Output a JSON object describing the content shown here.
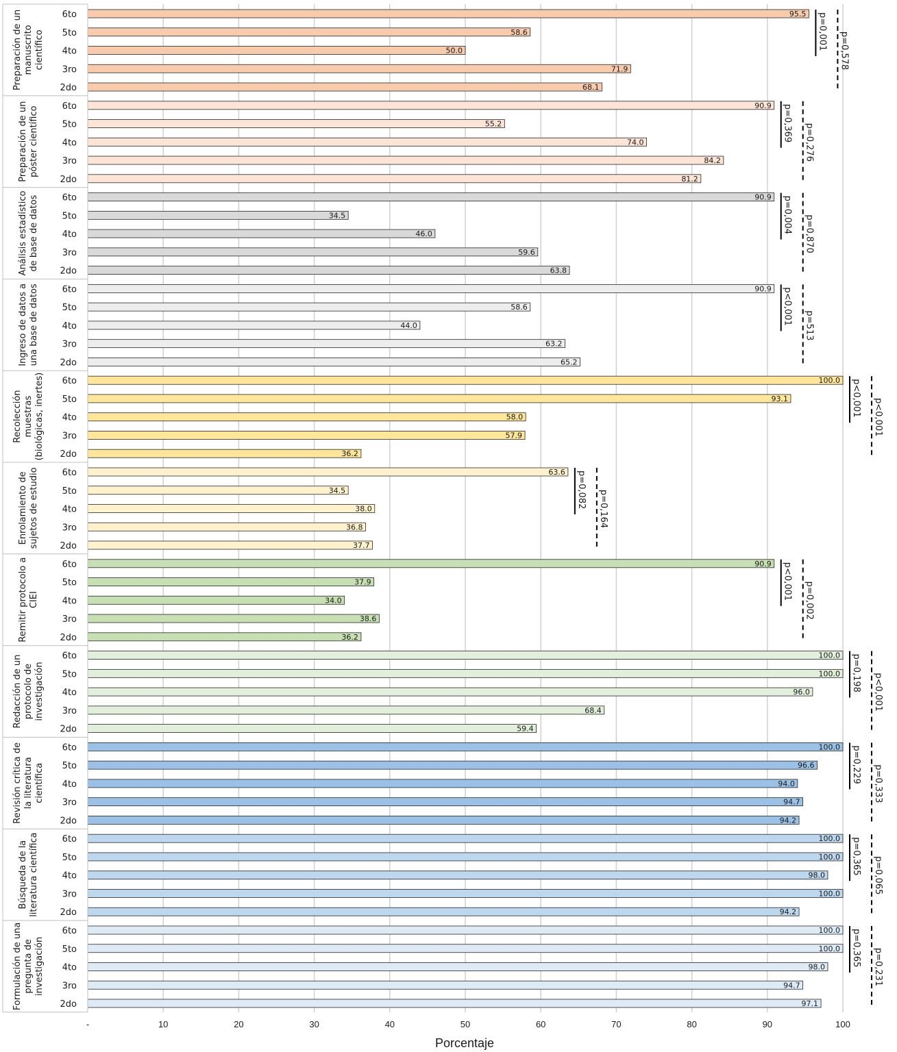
{
  "chart_data": {
    "type": "bar",
    "orientation": "horizontal",
    "xlabel": "Porcentaje",
    "xlim": [
      0,
      100
    ],
    "xticks": [
      "-",
      "10",
      "20",
      "30",
      "40",
      "50",
      "60",
      "70",
      "80",
      "90",
      "100"
    ],
    "grid": true,
    "categories": [
      "6to",
      "5to",
      "4to",
      "3ro",
      "2do"
    ],
    "groups": [
      {
        "name": "Preparación de un manuscrito científico",
        "label_lines": [
          "Preparación de un",
          "manuscrito",
          "científico"
        ],
        "color": "#f8cbad",
        "values": [
          95.5,
          58.6,
          50.0,
          71.9,
          68.1
        ],
        "values_text": [
          "95.5",
          "58.6",
          "50.0",
          "71.9",
          "68.1"
        ],
        "p_solid": "p=0,001",
        "p_dashed": "p=0,578"
      },
      {
        "name": "Preparación de un póster científico",
        "label_lines": [
          "Preparación de un",
          "póster científico"
        ],
        "color": "#fce4d6",
        "values": [
          90.9,
          55.2,
          74.0,
          84.2,
          81.2
        ],
        "values_text": [
          "90.9",
          "55.2",
          "74.0",
          "84.2",
          "81.2"
        ],
        "p_solid": "p=0,369",
        "p_dashed": "p=0,276"
      },
      {
        "name": "Análisis estadístico de base de datos",
        "label_lines": [
          "Análisis estadístico",
          "de base de datos"
        ],
        "color": "#d9d9d9",
        "values": [
          90.9,
          34.5,
          46.0,
          59.6,
          63.8
        ],
        "values_text": [
          "90.9",
          "34.5",
          "46.0",
          "59.6",
          "63.8"
        ],
        "p_solid": "p=0,004",
        "p_dashed": "p=0,870"
      },
      {
        "name": "Ingreso de datos a una base de datos",
        "label_lines": [
          "Ingreso de datos a",
          "una base de datos"
        ],
        "color": "#ededed",
        "values": [
          90.9,
          58.6,
          44.0,
          63.2,
          65.2
        ],
        "values_text": [
          "90.9",
          "58.6",
          "44.0",
          "63.2",
          "65.2"
        ],
        "p_solid": "p<0,001",
        "p_dashed": "p=513"
      },
      {
        "name": "Recolección muestras (biológicas, inertes)",
        "label_lines": [
          "Recolección",
          "muestras",
          "(biológicas, inertes)"
        ],
        "color": "#ffe699",
        "values": [
          100.0,
          93.1,
          58.0,
          57.9,
          36.2
        ],
        "values_text": [
          "100.0",
          "93.1",
          "58.0",
          "57.9",
          "36.2"
        ],
        "p_solid": "p<0,001",
        "p_dashed": "p<0,001"
      },
      {
        "name": "Enrolamiento de sujetos de estudio",
        "label_lines": [
          "Enrolamiento de",
          "sujetos de estudio"
        ],
        "color": "#fff2cc",
        "values": [
          63.6,
          34.5,
          38.0,
          36.8,
          37.7
        ],
        "values_text": [
          "63.6",
          "34.5",
          "38.0",
          "36.8",
          "37.7"
        ],
        "p_solid": "p=0,082",
        "p_dashed": "p=0,164"
      },
      {
        "name": "Remitir protocolo a CIEI",
        "label_lines": [
          "Remitir protocolo a",
          "CIEI"
        ],
        "color": "#c6e0b4",
        "values": [
          90.9,
          37.9,
          34.0,
          38.6,
          36.2
        ],
        "values_text": [
          "90.9",
          "37.9",
          "34.0",
          "38.6",
          "36.2"
        ],
        "p_solid": "p<0,001",
        "p_dashed": "p=0,002"
      },
      {
        "name": "Redacción de un protocolo de investigación",
        "label_lines": [
          "Redacción de un",
          "protocolo de",
          "investigación"
        ],
        "color": "#e2efda",
        "values": [
          100.0,
          100.0,
          96.0,
          68.4,
          59.4
        ],
        "values_text": [
          "100.0",
          "100.0",
          "96.0",
          "68.4",
          "59.4"
        ],
        "p_solid": "p=0,198",
        "p_dashed": "p<0,001"
      },
      {
        "name": "Revisión crítica de la literatura científica",
        "label_lines": [
          "Revisión crítica de",
          "la literatura",
          "científica"
        ],
        "color": "#9bc2e6",
        "values": [
          100.0,
          96.6,
          94.0,
          94.7,
          94.2
        ],
        "values_text": [
          "100.0",
          "96.6",
          "94.0",
          "94.7",
          "94.2"
        ],
        "p_solid": "p=0,229",
        "p_dashed": "p=0,333"
      },
      {
        "name": "Búsqueda de la literatura científica",
        "label_lines": [
          "Búsqueda de la",
          "literatura científica"
        ],
        "color": "#bdd7ee",
        "values": [
          100.0,
          100.0,
          98.0,
          100.0,
          94.2
        ],
        "values_text": [
          "100.0",
          "100.0",
          "98.0",
          "100.0",
          "94.2"
        ],
        "p_solid": "p=0,365",
        "p_dashed": "p=0,065"
      },
      {
        "name": "Formulación de una pregunta de investigación",
        "label_lines": [
          "Formulación de una",
          "pregunta de",
          "investigación"
        ],
        "color": "#ddebf7",
        "values": [
          100.0,
          100.0,
          98.0,
          94.7,
          97.1
        ],
        "values_text": [
          "100.0",
          "100.0",
          "98.0",
          "94.7",
          "97.1"
        ],
        "p_solid": "p=0,365",
        "p_dashed": "p=0,231"
      }
    ]
  }
}
